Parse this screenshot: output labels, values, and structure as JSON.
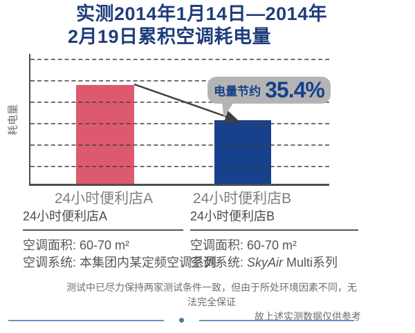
{
  "title": {
    "line1": "实测2014年1月14日—2014年",
    "line2": "2月19日累积空调耗电量"
  },
  "chart_data": {
    "type": "bar",
    "title": "实测2014年1月14日—2014年2月19日累积空调耗电量",
    "ylabel": "耗电量",
    "xlabel": "",
    "categories": [
      "24小时便利店A",
      "24小时便利店B"
    ],
    "values": [
      100,
      64.6
    ],
    "value_scale": "relative, store A = 100 (no numeric axis ticks shown)",
    "ylim": [
      0,
      130
    ],
    "grid": "horizontal-dashed",
    "gridline_count": 6,
    "bar_colors": [
      "#dd5a6e",
      "#17418c"
    ],
    "legend": "none",
    "annotation": {
      "label": "电量节约",
      "value": "35.4%",
      "target": "24小时便利店B"
    }
  },
  "stores": [
    {
      "name": "24小时便利店A",
      "area": "空调面积: 60-70 m²",
      "system_label": "空调系统: ",
      "system_italic": "",
      "system_rest": "本集团内某定频空调系列"
    },
    {
      "name": "24小时便利店B",
      "area": "空调面积: 60-70 m²",
      "system_label": "空调系统: ",
      "system_italic": "SkyAir",
      "system_rest": " Multi系列"
    }
  ],
  "footnote": {
    "line1": "测试中已尽力保持两家测试条件一致，但由于所处环境因素不同，无法完全保证",
    "line2": "故上述实测数据仅供参考"
  },
  "colors": {
    "title": "#1e3d7b",
    "bar_a": "#dd5a6e",
    "bar_b": "#17418c",
    "bubble_bg": "#b5b4b4",
    "bubble_text": "#16408a",
    "axis": "#4c4c4c",
    "footer_line": "#6a93bd"
  }
}
